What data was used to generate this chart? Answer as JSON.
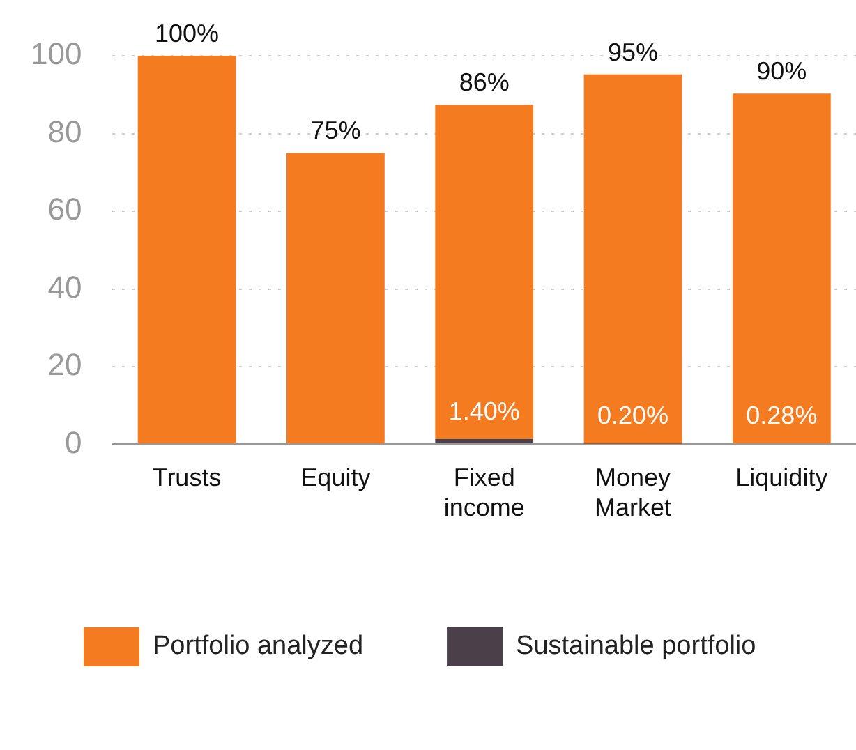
{
  "chart_data": {
    "type": "bar",
    "stacked": true,
    "categories": [
      "Trusts",
      "Equity",
      "Fixed income",
      "Money Market",
      "Liquidity"
    ],
    "series": [
      {
        "name": "Sustainable portfolio",
        "color": "#4b4049",
        "values": [
          null,
          null,
          1.4,
          0.2,
          0.28
        ],
        "value_labels": [
          null,
          null,
          "1.40%",
          "0.20%",
          "0.28%"
        ]
      },
      {
        "name": "Portfolio analyzed",
        "color": "#f47b20",
        "values": [
          100,
          75,
          86,
          95,
          90
        ],
        "value_labels": [
          "100%",
          "75%",
          "86%",
          "95%",
          "90%"
        ]
      }
    ],
    "ylim": [
      0,
      100
    ],
    "yticks": [
      0,
      20,
      40,
      60,
      80,
      100
    ],
    "grid": "y",
    "legend": "bottom"
  }
}
